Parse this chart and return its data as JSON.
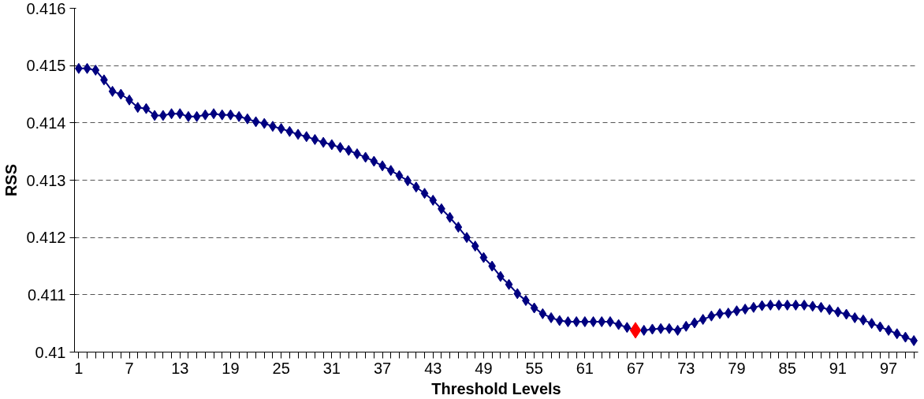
{
  "chart_data": {
    "type": "line",
    "xlabel": "Threshold Levels",
    "ylabel": "RSS",
    "categories": [
      "1",
      null,
      null,
      null,
      null,
      null,
      "7",
      null,
      null,
      null,
      null,
      null,
      "13",
      null,
      null,
      null,
      null,
      null,
      "19",
      null,
      null,
      null,
      null,
      null,
      "25",
      null,
      null,
      null,
      null,
      null,
      "31",
      null,
      null,
      null,
      null,
      null,
      "37",
      null,
      null,
      null,
      null,
      null,
      "43",
      null,
      null,
      null,
      null,
      null,
      "49",
      null,
      null,
      null,
      null,
      null,
      "55",
      null,
      null,
      null,
      null,
      null,
      "61",
      null,
      null,
      null,
      null,
      null,
      "67",
      null,
      null,
      null,
      null,
      null,
      "73",
      null,
      null,
      null,
      null,
      null,
      "79",
      null,
      null,
      null,
      null,
      null,
      "85",
      null,
      null,
      null,
      null,
      null,
      "91",
      null,
      null,
      null,
      null,
      null,
      "97",
      null,
      null,
      null
    ],
    "series": [
      {
        "color": "#000080",
        "marker": "diamond",
        "line_style": "solid",
        "values": [
          0.41495,
          0.41495,
          0.41492,
          0.41475,
          0.41455,
          0.4145,
          0.4144,
          0.41427,
          0.41425,
          0.41413,
          0.41413,
          0.41416,
          0.41416,
          0.41411,
          0.41411,
          0.41414,
          0.41416,
          0.41414,
          0.41414,
          0.41411,
          0.41407,
          0.41402,
          0.41399,
          0.41394,
          0.4139,
          0.41385,
          0.4138,
          0.41376,
          0.41371,
          0.41366,
          0.41362,
          0.41357,
          0.41352,
          0.41346,
          0.4134,
          0.41333,
          0.41325,
          0.41317,
          0.41308,
          0.41299,
          0.41288,
          0.41277,
          0.41265,
          0.4125,
          0.41235,
          0.41218,
          0.412,
          0.41185,
          0.41165,
          0.4115,
          0.41132,
          0.41118,
          0.41102,
          0.4109,
          0.41077,
          0.41067,
          0.4106,
          0.41055,
          0.41053,
          0.41053,
          0.41053,
          0.41053,
          0.41053,
          0.41053,
          0.41048,
          0.41043,
          0.41038,
          0.41038,
          0.4104,
          0.41041,
          0.41041,
          0.41038,
          0.41045,
          0.41051,
          0.41057,
          0.41063,
          0.41067,
          0.41068,
          0.41072,
          0.41075,
          0.41078,
          0.41081,
          0.41082,
          0.41082,
          0.41082,
          0.41082,
          0.41082,
          0.4108,
          0.41078,
          0.41074,
          0.4107,
          0.41066,
          0.4106,
          0.41056,
          0.4105,
          0.41044,
          0.41038,
          0.41032,
          0.41026,
          0.4102
        ]
      },
      {
        "type": "scatter",
        "color": "#ff0000",
        "marker": "diamond",
        "x": [
          "67"
        ],
        "values": [
          0.41038
        ]
      }
    ],
    "ylim": [
      0.41,
      0.416
    ],
    "yticks": [
      0.41,
      0.411,
      0.412,
      0.413,
      0.414,
      0.415,
      0.416
    ],
    "grid": "y"
  }
}
